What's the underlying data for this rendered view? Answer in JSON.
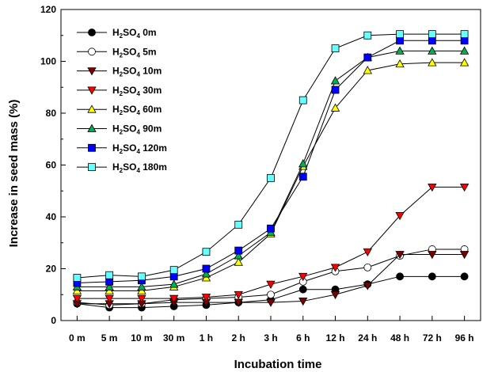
{
  "chart_data": {
    "type": "line",
    "xlabel": "Incubation time",
    "ylabel": "Increase in seed mass (%)",
    "ylim": [
      0,
      120
    ],
    "yticks": [
      0,
      20,
      40,
      60,
      80,
      100,
      120
    ],
    "categories": [
      "0 m",
      "5 m",
      "10 m",
      "30 m",
      "1 h",
      "2 h",
      "3 h",
      "6 h",
      "12 h",
      "24 h",
      "48 h",
      "72 h",
      "96 h"
    ],
    "legend_position": "top-left",
    "grid": false,
    "series": [
      {
        "name": "H2SO4 0m",
        "name_parts": [
          "H",
          "2",
          "SO",
          "4",
          " 0m"
        ],
        "marker": "circle",
        "color": "#000000",
        "values": [
          6.5,
          5,
          5,
          5.5,
          6,
          7,
          8,
          12,
          12,
          14,
          17,
          17,
          17
        ]
      },
      {
        "name": "H2SO4 5m",
        "name_parts": [
          "H",
          "2",
          "SO",
          "4",
          " 5m"
        ],
        "marker": "circle",
        "color": "#ffffff",
        "values": [
          7,
          6,
          6.5,
          8,
          8.5,
          9,
          10,
          15,
          19,
          20.5,
          25,
          27.5,
          27.5
        ]
      },
      {
        "name": "H2SO4 10m",
        "name_parts": [
          "H",
          "2",
          "SO",
          "4",
          " 10m"
        ],
        "marker": "triangle-down",
        "color": "#7f0000",
        "values": [
          6.5,
          6.5,
          6.5,
          7,
          7,
          7,
          7,
          7.5,
          10,
          13.5,
          25.5,
          25.5,
          25.5
        ]
      },
      {
        "name": "H2SO4 30m",
        "name_parts": [
          "H",
          "2",
          "SO",
          "4",
          " 30m"
        ],
        "marker": "triangle-down",
        "color": "#ff0000",
        "values": [
          8.5,
          8.5,
          8.5,
          8.5,
          9,
          10,
          14,
          17,
          20.5,
          26.5,
          40.5,
          51.5,
          51.5
        ]
      },
      {
        "name": "H2SO4 60m",
        "name_parts": [
          "H",
          "2",
          "SO",
          "4",
          " 60m"
        ],
        "marker": "triangle-up",
        "color": "#ffff00",
        "values": [
          11.5,
          11.5,
          11.5,
          13,
          16.5,
          22.5,
          33.5,
          59.5,
          82,
          96.5,
          99,
          99.5,
          99.5
        ]
      },
      {
        "name": "H2SO4 90m",
        "name_parts": [
          "H",
          "2",
          "SO",
          "4",
          " 90m"
        ],
        "marker": "triangle-up",
        "color": "#00b050",
        "values": [
          13,
          13,
          13,
          14,
          18,
          25,
          34,
          60.5,
          92.5,
          101.5,
          104,
          104,
          104
        ]
      },
      {
        "name": "H2SO4 120m",
        "name_parts": [
          "H",
          "2",
          "SO",
          "4",
          " 120m"
        ],
        "marker": "square",
        "color": "#0000ff",
        "values": [
          14.5,
          15,
          15.5,
          17,
          20,
          27,
          35.5,
          55.5,
          89,
          101.5,
          108,
          108,
          108
        ]
      },
      {
        "name": "H2SO4 180m",
        "name_parts": [
          "H",
          "2",
          "SO",
          "4",
          " 180m"
        ],
        "marker": "square",
        "color": "#66ffff",
        "values": [
          16.5,
          17.5,
          17,
          19.5,
          26.5,
          37,
          55,
          85,
          105,
          110,
          110.5,
          110.5,
          110.5
        ]
      }
    ]
  }
}
